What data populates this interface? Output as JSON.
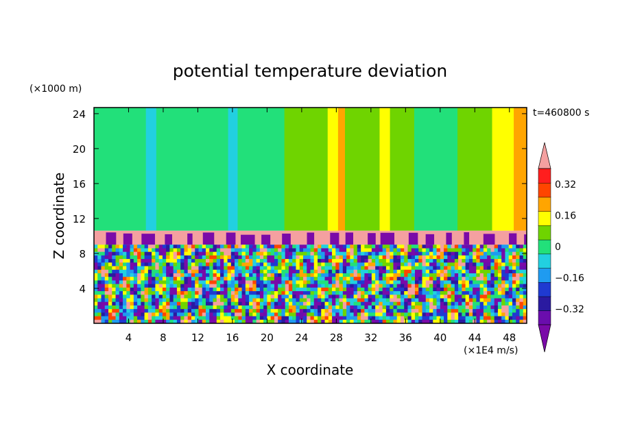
{
  "chart_data": {
    "type": "heatmap",
    "title": "potential temperature deviation",
    "xlabel": "X coordinate",
    "ylabel": "Z coordinate",
    "x_unit": "(×1E4 m/s)",
    "y_unit": "(×1000 m)",
    "time_label": "t=460800 s",
    "xlim": [
      0,
      50
    ],
    "ylim": [
      0,
      24.7
    ],
    "x_ticks": [
      4,
      8,
      12,
      16,
      20,
      24,
      28,
      32,
      36,
      40,
      44,
      48
    ],
    "y_ticks": [
      4,
      8,
      12,
      16,
      20,
      24
    ],
    "layers": {
      "lower_boundary_z": 9,
      "stable_layer_top_z": 10.6,
      "lower_zone": "turbulent small-scale mixture of all levels",
      "upper_zone": "vertical bands near 0"
    },
    "upper_columns": [
      {
        "x0": 0,
        "x1": 6,
        "level": 0
      },
      {
        "x0": 6,
        "x1": 7.2,
        "level": -0.08
      },
      {
        "x0": 7.2,
        "x1": 15.5,
        "level": 0
      },
      {
        "x0": 15.5,
        "x1": 16.6,
        "level": -0.08
      },
      {
        "x0": 16.6,
        "x1": 22,
        "level": 0
      },
      {
        "x0": 22,
        "x1": 27,
        "level": 0.08
      },
      {
        "x0": 27,
        "x1": 28.2,
        "level": 0.16
      },
      {
        "x0": 28.2,
        "x1": 29,
        "level": 0.24
      },
      {
        "x0": 29,
        "x1": 33,
        "level": 0.08
      },
      {
        "x0": 33,
        "x1": 34.2,
        "level": 0.16
      },
      {
        "x0": 34.2,
        "x1": 37,
        "level": 0.08
      },
      {
        "x0": 37,
        "x1": 42,
        "level": 0
      },
      {
        "x0": 42,
        "x1": 46,
        "level": 0.08
      },
      {
        "x0": 46,
        "x1": 48.5,
        "level": 0.16
      },
      {
        "x0": 48.5,
        "x1": 50,
        "level": 0.24
      }
    ],
    "colorbar": {
      "levels": [
        -0.4,
        -0.32,
        -0.24,
        -0.16,
        -0.08,
        0,
        0.08,
        0.16,
        0.24,
        0.32,
        0.4
      ],
      "labels": [
        "0.32",
        "0.16",
        "0",
        "−0.16",
        "−0.32"
      ],
      "label_values": [
        0.32,
        0.16,
        0,
        -0.16,
        -0.32
      ],
      "colors": [
        "#6a0dad",
        "#2a1aa0",
        "#1f3ad1",
        "#1f9bf0",
        "#22d0e0",
        "#22e07a",
        "#6fd400",
        "#ffff00",
        "#ffa500",
        "#ff4500",
        "#ff1e1e"
      ],
      "over_color": "#f4a0a0",
      "under_color": "#7a0aa8"
    }
  }
}
